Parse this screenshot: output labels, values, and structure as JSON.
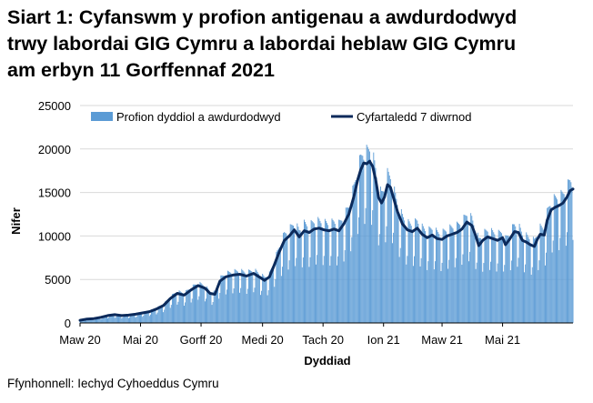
{
  "title_lines": [
    "Siart 1: Cyfanswm y profion antigenau a awdurdodwyd",
    "trwy labordai GIG Cymru a labordai heblaw GIG Cymru",
    "am erbyn 11 Gorffennaf 2021"
  ],
  "source": "Ffynhonnell: Iechyd Cyhoeddus Cymru",
  "chart_data": {
    "type": "bar",
    "xlabel": "Dyddiad",
    "ylabel": "Nifer",
    "ylim": [
      0,
      25000
    ],
    "yticks": [
      0,
      5000,
      10000,
      15000,
      20000,
      25000
    ],
    "ytick_labels": [
      "0",
      "5000",
      "10000",
      "15000",
      "20000",
      "25000"
    ],
    "x_start": "2020-03-01",
    "x_end": "2021-07-11",
    "xticks": [
      {
        "date": "2020-03-01",
        "label": "Maw 20"
      },
      {
        "date": "2020-05-01",
        "label": "Mai 20"
      },
      {
        "date": "2020-07-01",
        "label": "Gorff 20"
      },
      {
        "date": "2020-09-01",
        "label": "Medi 20"
      },
      {
        "date": "2020-11-01",
        "label": "Tach 20"
      },
      {
        "date": "2021-01-01",
        "label": "Ion 21"
      },
      {
        "date": "2021-03-01",
        "label": "Maw 21"
      },
      {
        "date": "2021-05-01",
        "label": "Mai 21"
      }
    ],
    "grid": true,
    "legend_position": "top",
    "series": [
      {
        "name": "Profion dyddiol a awdurdodwyd",
        "kind": "bar",
        "color": "#5b9bd5",
        "weekday_pattern": [
          0.72,
          1.12,
          1.1,
          1.08,
          1.06,
          1.02,
          0.62
        ]
      },
      {
        "name": "Cyfartaledd 7 diwrnod",
        "kind": "line",
        "color": "#0b2a5b",
        "points": [
          [
            "2020-03-01",
            300
          ],
          [
            "2020-03-08",
            450
          ],
          [
            "2020-03-15",
            500
          ],
          [
            "2020-03-22",
            650
          ],
          [
            "2020-03-29",
            850
          ],
          [
            "2020-04-05",
            950
          ],
          [
            "2020-04-12",
            850
          ],
          [
            "2020-04-19",
            900
          ],
          [
            "2020-04-26",
            1000
          ],
          [
            "2020-05-03",
            1150
          ],
          [
            "2020-05-10",
            1300
          ],
          [
            "2020-05-17",
            1600
          ],
          [
            "2020-05-24",
            2000
          ],
          [
            "2020-05-31",
            2800
          ],
          [
            "2020-06-07",
            3400
          ],
          [
            "2020-06-14",
            3200
          ],
          [
            "2020-06-21",
            3800
          ],
          [
            "2020-06-28",
            4300
          ],
          [
            "2020-07-05",
            4000
          ],
          [
            "2020-07-10",
            3400
          ],
          [
            "2020-07-15",
            3300
          ],
          [
            "2020-07-20",
            4800
          ],
          [
            "2020-07-26",
            5300
          ],
          [
            "2020-08-02",
            5500
          ],
          [
            "2020-08-09",
            5600
          ],
          [
            "2020-08-16",
            5400
          ],
          [
            "2020-08-23",
            5700
          ],
          [
            "2020-08-30",
            5200
          ],
          [
            "2020-09-03",
            4900
          ],
          [
            "2020-09-08",
            5300
          ],
          [
            "2020-09-13",
            6700
          ],
          [
            "2020-09-18",
            8200
          ],
          [
            "2020-09-23",
            9500
          ],
          [
            "2020-09-28",
            10000
          ],
          [
            "2020-10-03",
            10700
          ],
          [
            "2020-10-08",
            9900
          ],
          [
            "2020-10-13",
            10600
          ],
          [
            "2020-10-18",
            10400
          ],
          [
            "2020-10-23",
            10800
          ],
          [
            "2020-10-28",
            10900
          ],
          [
            "2020-11-02",
            10700
          ],
          [
            "2020-11-07",
            10600
          ],
          [
            "2020-11-12",
            10800
          ],
          [
            "2020-11-17",
            10600
          ],
          [
            "2020-11-22",
            11400
          ],
          [
            "2020-11-27",
            12500
          ],
          [
            "2020-12-02",
            14500
          ],
          [
            "2020-12-06",
            16500
          ],
          [
            "2020-12-09",
            17600
          ],
          [
            "2020-12-12",
            18400
          ],
          [
            "2020-12-15",
            18300
          ],
          [
            "2020-12-18",
            18600
          ],
          [
            "2020-12-21",
            18000
          ],
          [
            "2020-12-24",
            16500
          ],
          [
            "2020-12-27",
            14400
          ],
          [
            "2020-12-30",
            13800
          ],
          [
            "2021-01-02",
            14500
          ],
          [
            "2021-01-05",
            15900
          ],
          [
            "2021-01-08",
            15600
          ],
          [
            "2021-01-11",
            14400
          ],
          [
            "2021-01-15",
            12800
          ],
          [
            "2021-01-20",
            11400
          ],
          [
            "2021-01-25",
            10700
          ],
          [
            "2021-01-30",
            10500
          ],
          [
            "2021-02-04",
            10900
          ],
          [
            "2021-02-09",
            10200
          ],
          [
            "2021-02-14",
            9800
          ],
          [
            "2021-02-19",
            10100
          ],
          [
            "2021-02-24",
            9700
          ],
          [
            "2021-03-01",
            9600
          ],
          [
            "2021-03-06",
            10000
          ],
          [
            "2021-03-11",
            10200
          ],
          [
            "2021-03-16",
            10400
          ],
          [
            "2021-03-21",
            10800
          ],
          [
            "2021-03-26",
            11600
          ],
          [
            "2021-03-31",
            11200
          ],
          [
            "2021-04-04",
            10000
          ],
          [
            "2021-04-07",
            8900
          ],
          [
            "2021-04-11",
            9500
          ],
          [
            "2021-04-16",
            9900
          ],
          [
            "2021-04-21",
            9700
          ],
          [
            "2021-04-26",
            9500
          ],
          [
            "2021-05-01",
            9800
          ],
          [
            "2021-05-04",
            9000
          ],
          [
            "2021-05-08",
            9600
          ],
          [
            "2021-05-13",
            10500
          ],
          [
            "2021-05-17",
            10400
          ],
          [
            "2021-05-21",
            9500
          ],
          [
            "2021-05-25",
            9300
          ],
          [
            "2021-05-29",
            9000
          ],
          [
            "2021-06-02",
            8800
          ],
          [
            "2021-06-05",
            9600
          ],
          [
            "2021-06-08",
            10200
          ],
          [
            "2021-06-12",
            10100
          ],
          [
            "2021-06-15",
            11800
          ],
          [
            "2021-06-19",
            13000
          ],
          [
            "2021-06-23",
            13300
          ],
          [
            "2021-06-27",
            13500
          ],
          [
            "2021-07-01",
            13800
          ],
          [
            "2021-07-05",
            14500
          ],
          [
            "2021-07-08",
            15200
          ],
          [
            "2021-07-11",
            15400
          ]
        ]
      }
    ]
  }
}
